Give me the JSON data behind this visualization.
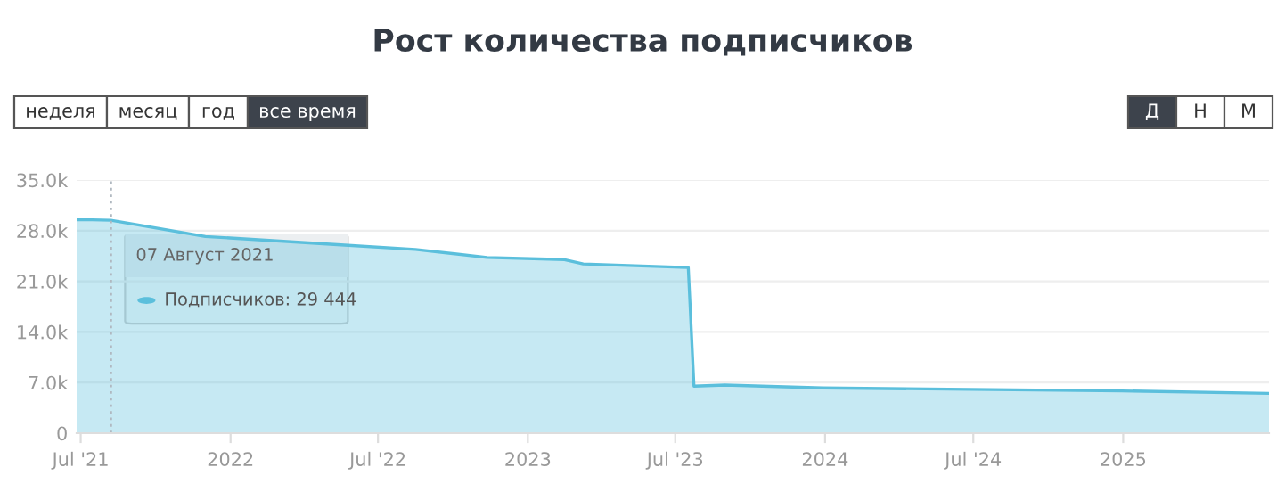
{
  "chart_data": {
    "type": "area",
    "title": "Рост количества подписчиков",
    "x": [
      "2021-06-26",
      "2021-07-15",
      "2021-08-07",
      "2021-12-01",
      "2022-05-21",
      "2022-08-16",
      "2022-11-12",
      "2023-02-15",
      "2023-03-10",
      "2023-07-17",
      "2023-07-24",
      "2023-08-31",
      "2023-12-29",
      "2024-12-31",
      "2025-06-29"
    ],
    "series": [
      {
        "name": null,
        "color": "#5bbfdc",
        "values": [
          29500,
          29500,
          29444,
          27200,
          26000,
          25400,
          24300,
          24000,
          23400,
          22900,
          6500,
          6650,
          6250,
          5840,
          5500
        ]
      }
    ],
    "xlim": [
      "2021-06-26",
      "2025-06-29"
    ],
    "xticks": [
      {
        "value": "2021-07-01",
        "label": "Jul '21"
      },
      {
        "value": "2022-01-01",
        "label": "2022"
      },
      {
        "value": "2022-07-01",
        "label": "Jul '22"
      },
      {
        "value": "2023-01-01",
        "label": "2023"
      },
      {
        "value": "2023-07-01",
        "label": "Jul '23"
      },
      {
        "value": "2024-01-01",
        "label": "2024"
      },
      {
        "value": "2024-07-01",
        "label": "Jul '24"
      },
      {
        "value": "2025-01-01",
        "label": "2025"
      }
    ],
    "ylim": [
      0,
      35000
    ],
    "yticks": [
      0,
      {
        "value": 7000,
        "label": "7.0k"
      },
      {
        "value": 14000,
        "label": "14.0k"
      },
      {
        "value": 21000,
        "label": "21.0k"
      },
      {
        "value": 28000,
        "label": "28.0k"
      },
      {
        "value": 35000,
        "label": "35.0k"
      }
    ],
    "grid": "y",
    "legend": false,
    "ref_lines": [
      {
        "axis": "x",
        "value": "2021-08-07",
        "label": null,
        "color": "#b0b8c0",
        "line_style": "dotted"
      }
    ],
    "annotations": [
      "неделя",
      "месяц",
      "год",
      "все время",
      "Д",
      "Н",
      "М",
      {
        "text": "07 Август 2021",
        "x": "2021-08-07",
        "y": 29444
      },
      "Подписчиков: 29 444"
    ]
  }
}
